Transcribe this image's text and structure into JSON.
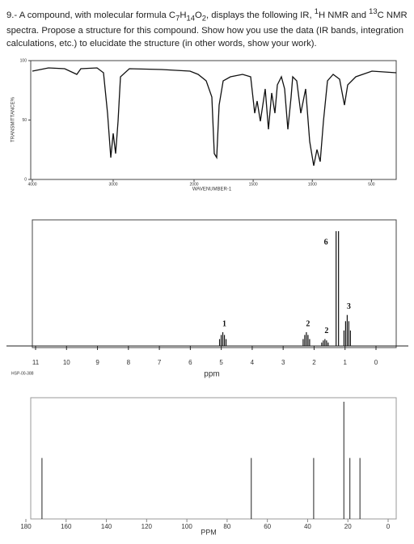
{
  "question": {
    "number": "9.-",
    "text_parts": [
      "A compound, with molecular formula C",
      "7",
      "H",
      "14",
      "O",
      "2",
      ", displays the following IR, ",
      "1",
      "H NMR and ",
      "13",
      "C NMR spectra. Propose a structure for this compound. Show how you use the data (IR bands, integration calculations, etc.) to elucidate the structure (in other words, show your work)."
    ]
  },
  "ir": {
    "y_label": "TRANSMITTANCE%",
    "x_label": "WAVENUMBER-1",
    "ylim": [
      0,
      100
    ],
    "yticks": [
      0,
      50,
      100
    ],
    "xlim": [
      4000,
      400
    ],
    "xticks": [
      4000,
      3000,
      2000,
      1500,
      1000,
      500
    ]
  },
  "h_nmr": {
    "x_label": "ppm",
    "code": "HSP-00-388",
    "xlim": [
      11,
      0
    ],
    "xticks": [
      11,
      10,
      9,
      8,
      7,
      6,
      5,
      4,
      3,
      2,
      1,
      0
    ],
    "ylim": [
      0,
      100
    ],
    "peaks": [
      {
        "shift": 4.95,
        "height": 12,
        "label": "1"
      },
      {
        "shift": 2.25,
        "height": 12,
        "label": "2"
      },
      {
        "shift": 1.65,
        "height": 6,
        "label": "2"
      },
      {
        "shift": 1.25,
        "height": 100,
        "label": "6"
      },
      {
        "shift": 0.93,
        "height": 27,
        "label": "3"
      }
    ]
  },
  "c_nmr": {
    "x_label": "PPM",
    "xlim": [
      180,
      0
    ],
    "xticks": [
      180,
      160,
      140,
      120,
      100,
      80,
      60,
      40,
      20,
      0
    ],
    "ylim": [
      0,
      100
    ],
    "peaks": [
      {
        "shift": 172,
        "height": 52
      },
      {
        "shift": 68,
        "height": 52
      },
      {
        "shift": 37,
        "height": 52
      },
      {
        "shift": 22,
        "height": 100
      },
      {
        "shift": 19,
        "height": 52
      },
      {
        "shift": 14,
        "height": 52
      }
    ]
  }
}
